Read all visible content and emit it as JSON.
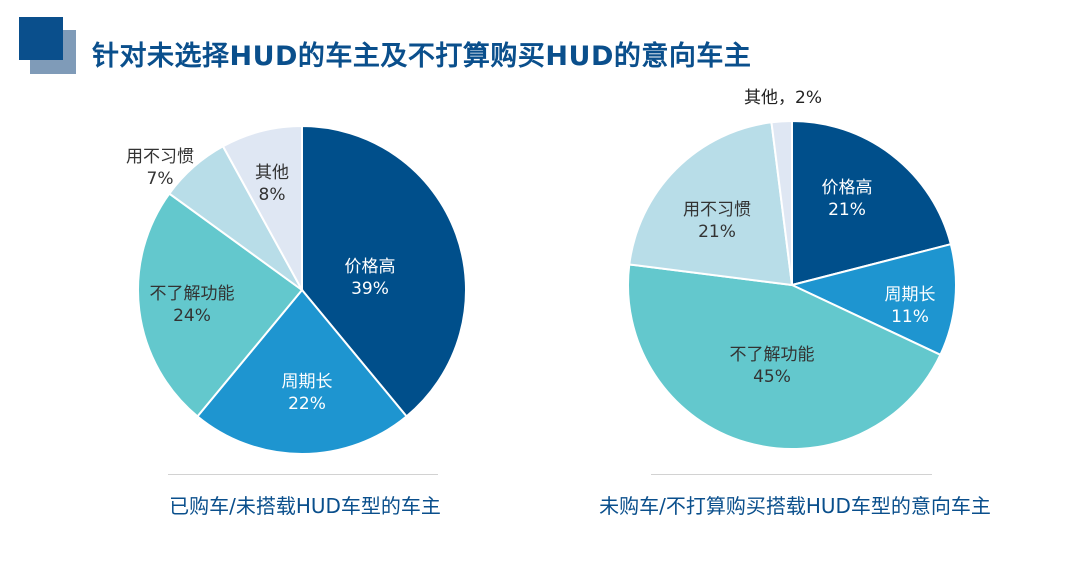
{
  "header": {
    "title": "针对未选择HUD的车主及不打算购买HUD的意向车主"
  },
  "colors": {
    "accent": "#0a4f8c",
    "slices": {
      "价格高": "#004f8b",
      "周期长": "#1e95d0",
      "不了解功能": "#63c8cd",
      "用不习惯": "#b8dde8",
      "其他": "#dfe7f3"
    }
  },
  "chart_data": [
    {
      "type": "pie",
      "caption": "已购车/未搭载HUD车型的车主",
      "slices": [
        {
          "label": "价格高",
          "value": 39,
          "value_label": "39%"
        },
        {
          "label": "周期长",
          "value": 22,
          "value_label": "22%"
        },
        {
          "label": "不了解功能",
          "value": 24,
          "value_label": "24%"
        },
        {
          "label": "用不习惯",
          "value": 7,
          "value_label": "7%"
        },
        {
          "label": "其他",
          "value": 8,
          "value_label": "8%"
        }
      ]
    },
    {
      "type": "pie",
      "caption": "未购车/不打算购买搭载HUD车型的意向车主",
      "slices": [
        {
          "label": "价格高",
          "value": 21,
          "value_label": "21%"
        },
        {
          "label": "周期长",
          "value": 11,
          "value_label": "11%"
        },
        {
          "label": "不了解功能",
          "value": 45,
          "value_label": "45%"
        },
        {
          "label": "用不习惯",
          "value": 21,
          "value_label": "21%"
        },
        {
          "label": "其他",
          "value": 2,
          "value_label": "2%",
          "inline_label": "其他，2%"
        }
      ]
    }
  ]
}
